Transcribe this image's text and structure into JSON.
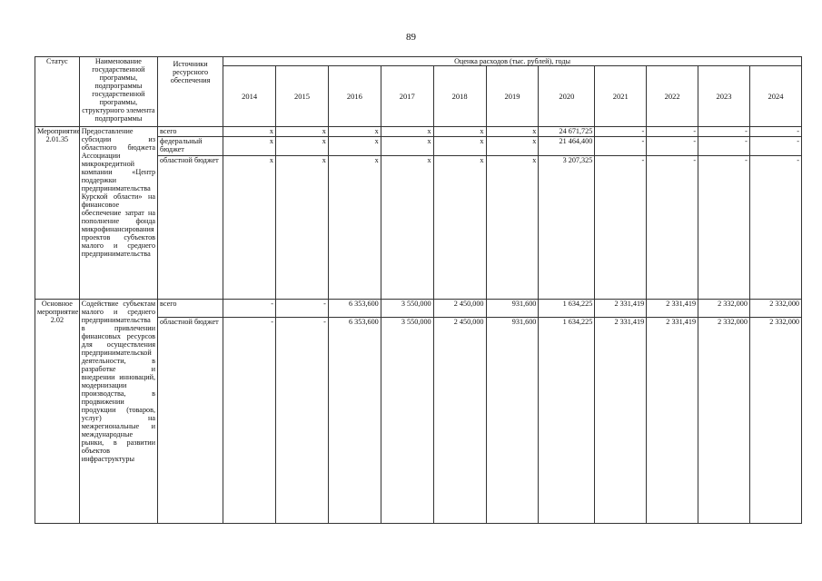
{
  "page_number": "89",
  "headers": {
    "status": "Статус",
    "name": "Наименование государственной программы, подпрограммы государственной программы, структурного элемента подпрограммы",
    "source": "Источники ресурсного обеспечения",
    "expenses": "Оценка расходов (тыс. рублей), годы",
    "years": [
      "2014",
      "2015",
      "2016",
      "2017",
      "2018",
      "2019",
      "2020",
      "2021",
      "2022",
      "2023",
      "2024"
    ]
  },
  "rows": [
    {
      "status": "Мероприятие 2.01.35",
      "name": "Предоставление субсидии из областного бюджета Ассоциации микрокредитной компании «Центр поддержки предпринимательства Курской области» на финансовое обеспечение затрат на пополнение фонда микрофинансирования проектов субъектов малого и среднего предпринимательства",
      "lines": [
        {
          "source": "всего",
          "values": [
            "x",
            "x",
            "x",
            "x",
            "x",
            "x",
            "24 671,725",
            "-",
            "-",
            "-",
            "-"
          ]
        },
        {
          "source": "федеральный бюджет",
          "values": [
            "x",
            "x",
            "x",
            "x",
            "x",
            "x",
            "21 464,400",
            "-",
            "-",
            "-",
            "-"
          ]
        },
        {
          "source": "областной бюджет",
          "values": [
            "x",
            "x",
            "x",
            "x",
            "x",
            "x",
            "3 207,325",
            "-",
            "-",
            "-",
            "-"
          ]
        }
      ]
    },
    {
      "status": "Основное мероприятие 2.02",
      "name": "Содействие субъектам малого и среднего предпринимательства в привлечении финансовых ресурсов для осуществления предпринимательской деятельности, в разработке и внедрении инноваций, модернизации производства, в продвижении продукции (товаров, услуг) на межрегиональные и международные рынки, в развитии объектов инфраструктуры",
      "lines": [
        {
          "source": "всего",
          "values": [
            "-",
            "-",
            "6 353,600",
            "3 550,000",
            "2 450,000",
            "931,600",
            "1 634,225",
            "2 331,419",
            "2 331,419",
            "2 332,000",
            "2 332,000"
          ]
        },
        {
          "source": "областной бюджет",
          "values": [
            "-",
            "-",
            "6 353,600",
            "3 550,000",
            "2 450,000",
            "931,600",
            "1 634,225",
            "2 331,419",
            "2 331,419",
            "2 332,000",
            "2 332,000"
          ]
        }
      ]
    }
  ]
}
